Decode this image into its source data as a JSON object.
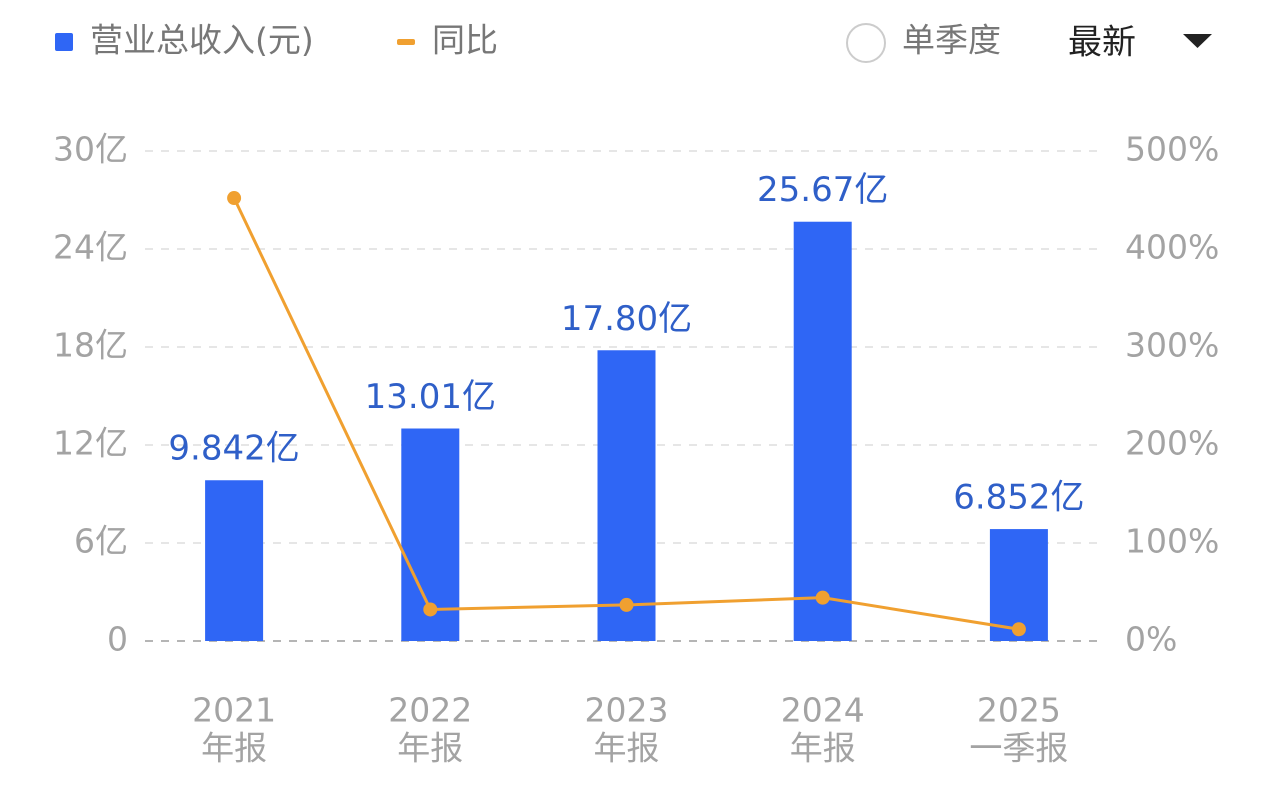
{
  "chart_data": {
    "type": "bar_line",
    "categories": [
      [
        "2021",
        "年报"
      ],
      [
        "2022",
        "年报"
      ],
      [
        "2023",
        "年报"
      ],
      [
        "2024",
        "年报"
      ],
      [
        "2025",
        "一季报"
      ]
    ],
    "series": [
      {
        "name": "营业总收入(元)",
        "color": "#2f66f5",
        "type": "bar",
        "values": [
          9.842,
          13.01,
          17.8,
          25.67,
          6.852
        ],
        "value_labels": [
          "9.842亿",
          "13.01亿",
          "17.80亿",
          "25.67亿",
          "6.852亿"
        ]
      },
      {
        "name": "同比",
        "color": "#f0a030",
        "type": "line",
        "axis": "y2",
        "values": [
          452,
          32.2,
          36.8,
          44.2,
          12
        ]
      }
    ],
    "ylim": [
      0,
      30
    ],
    "yticks": [
      0,
      {
        "value": 6,
        "label": "6亿"
      },
      {
        "value": 12,
        "label": "12亿"
      },
      {
        "value": 18,
        "label": "18亿"
      },
      {
        "value": 24,
        "label": "24亿"
      },
      {
        "value": 30,
        "label": "30亿"
      }
    ],
    "y2lim": [
      0,
      500
    ],
    "y2ticks": [
      {
        "value": 0,
        "label": "0%"
      },
      {
        "value": 100,
        "label": "100%"
      },
      {
        "value": 200,
        "label": "200%"
      },
      {
        "value": 300,
        "label": "300%"
      },
      {
        "value": 400,
        "label": "400%"
      },
      {
        "value": 500,
        "label": "500%"
      }
    ],
    "grid": true
  },
  "controls": {
    "radio": "单季度",
    "dropdown": "最新"
  }
}
